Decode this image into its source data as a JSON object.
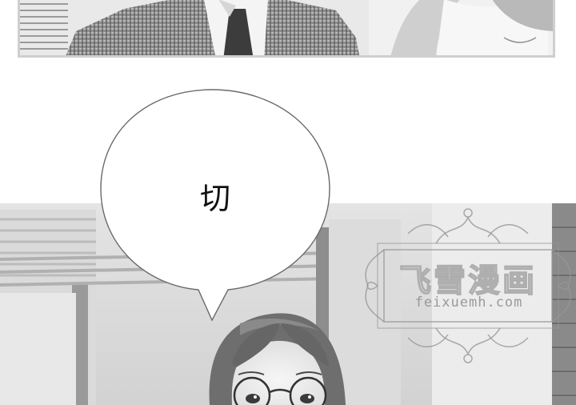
{
  "speech_bubble": {
    "text": "切"
  },
  "watermark": {
    "title": "飞雪漫画",
    "url": "feixuemh.com"
  }
}
